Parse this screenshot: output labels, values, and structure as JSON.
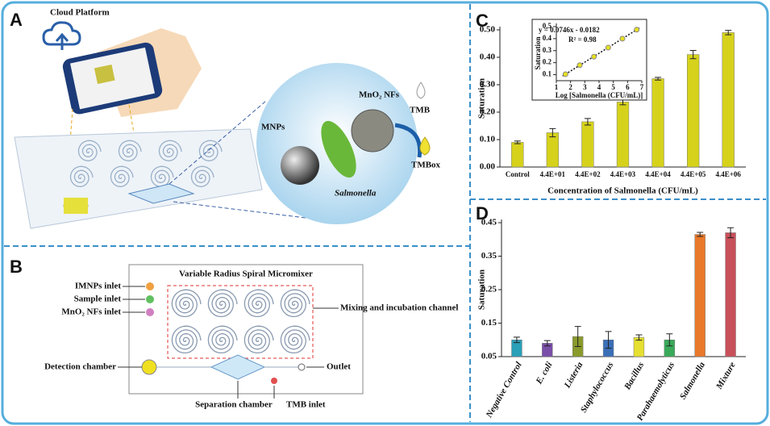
{
  "panel_a": {
    "label": "A",
    "cloud": "Cloud Platform",
    "mno2": "MnO₂ NFs",
    "tmb": "TMB",
    "mnps": "MNPs",
    "tmbox": "TMBox",
    "salmonella": "Salmonella"
  },
  "panel_b": {
    "label": "B",
    "title": "Variable Radius Spiral Micromixer",
    "imnps": "IMNPs inlet",
    "sample": "Sample inlet",
    "mno2": "MnO₂ NFs inlet",
    "mixing": "Mixing and incubation channel",
    "detection": "Detection chamber",
    "outlet": "Outlet",
    "separation": "Separation chamber",
    "tmb": "TMB inlet"
  },
  "chart_data": [
    {
      "type": "bar",
      "panel_label": "C",
      "y_label": "Saturation",
      "x_label": "Concentration of Salmonella (CFU/mL)",
      "categories": [
        "Control",
        "4.4E+01",
        "4.4E+02",
        "4.4E+03",
        "4.4E+04",
        "4.4E+05",
        "4.4E+06"
      ],
      "values": [
        0.09,
        0.125,
        0.165,
        0.237,
        0.322,
        0.41,
        0.49
      ],
      "errors": [
        0.005,
        0.015,
        0.012,
        0.01,
        0.005,
        0.015,
        0.008
      ],
      "color": "#d6d21c",
      "ylim": [
        0,
        0.5
      ],
      "yticks": [
        {
          "value": 0,
          "label": "0.00"
        },
        {
          "value": 0.1,
          "label": "0.10"
        },
        {
          "value": 0.2,
          "label": "0.20"
        },
        {
          "value": 0.3,
          "label": "0.30"
        },
        {
          "value": 0.4,
          "label": "0.40"
        },
        {
          "value": 0.5,
          "label": "0.50"
        }
      ]
    },
    {
      "type": "scatter",
      "y_label": "Saturation",
      "x_label": "Log [Salmonella (CFU/mL)]",
      "annotations": [
        "y = 0.0746x - 0.0182",
        "R² = 0.98"
      ],
      "x": [
        1.64,
        2.64,
        3.64,
        4.64,
        5.64,
        6.64
      ],
      "values": [
        0.104,
        0.179,
        0.25,
        0.325,
        0.4,
        0.475
      ],
      "color": "#e8e020",
      "xlim": [
        1,
        7
      ],
      "xticks": [
        1,
        2,
        3,
        4,
        5,
        6,
        7
      ],
      "ylim": [
        0.05,
        0.5
      ],
      "yticks": [
        0.1,
        0.2,
        0.3,
        0.4,
        0.5
      ]
    },
    {
      "type": "bar",
      "panel_label": "D",
      "y_label": "Saturation",
      "categories": [
        "Negative Control",
        "E. coli",
        "Listeria",
        "Staphylococcus",
        "Bacillus",
        "Parahaemolyticus",
        "Salmonella",
        "Mixture"
      ],
      "values": [
        0.1,
        0.09,
        0.11,
        0.1,
        0.107,
        0.1,
        0.415,
        0.42
      ],
      "errors": [
        0.008,
        0.008,
        0.03,
        0.025,
        0.008,
        0.018,
        0.006,
        0.015
      ],
      "colors": [
        "#2a9fb8",
        "#7a4fa8",
        "#8a9a2a",
        "#3a6fb8",
        "#e6e030",
        "#3aaa5a",
        "#e8782a",
        "#c8505a"
      ],
      "ylim": [
        0.05,
        0.45
      ],
      "yticks": [
        0.05,
        0.15,
        0.25,
        0.35,
        0.45
      ]
    }
  ]
}
